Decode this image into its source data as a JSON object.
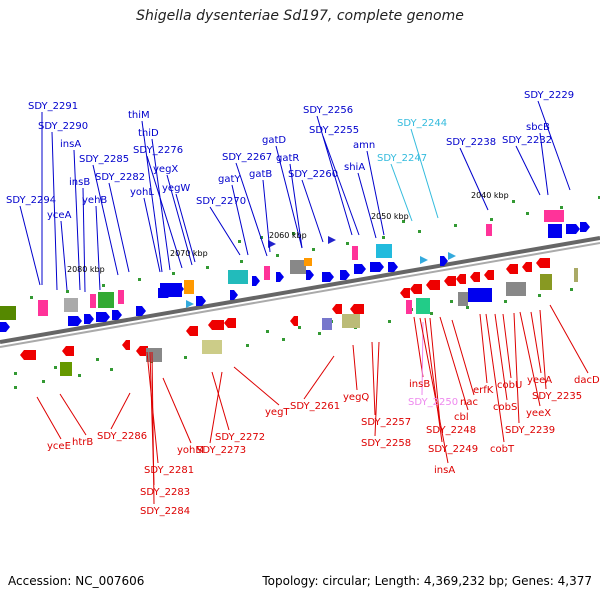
{
  "title": "Shigella dysenteriae Sd197, complete genome",
  "accession": "Accession: NC_007606",
  "summary": "Topology: circular; Length: 4,369,232 bp; Genes: 4,377",
  "colors": {
    "forward_label": "#0000cc",
    "reverse_label": "#dd0000",
    "cyan_label": "#33bbdd",
    "pink_label": "#ee88ee",
    "backbone": "#777777"
  },
  "kbp_ticks": [
    "2080 kbp",
    "2070 kbp",
    "2060 kbp",
    "2050 kbp",
    "2040 kbp"
  ],
  "top_labels": [
    {
      "text": "SDY_2291",
      "color": "blue"
    },
    {
      "text": "SDY_2290",
      "color": "blue"
    },
    {
      "text": "insA",
      "color": "blue"
    },
    {
      "text": "SDY_2294",
      "color": "blue"
    },
    {
      "text": "yceA",
      "color": "blue"
    },
    {
      "text": "insB",
      "color": "blue"
    },
    {
      "text": "yehB",
      "color": "blue"
    },
    {
      "text": "SDY_2285",
      "color": "blue"
    },
    {
      "text": "SDY_2282",
      "color": "blue"
    },
    {
      "text": "thiM",
      "color": "blue"
    },
    {
      "text": "thiD",
      "color": "blue"
    },
    {
      "text": "SDY_2276",
      "color": "blue"
    },
    {
      "text": "yegX",
      "color": "blue"
    },
    {
      "text": "yohL",
      "color": "blue"
    },
    {
      "text": "yegW",
      "color": "blue"
    },
    {
      "text": "SDY_2270",
      "color": "blue"
    },
    {
      "text": "gatY",
      "color": "blue"
    },
    {
      "text": "SDY_2267",
      "color": "blue"
    },
    {
      "text": "gatD",
      "color": "blue"
    },
    {
      "text": "gatB",
      "color": "blue"
    },
    {
      "text": "gatR",
      "color": "blue"
    },
    {
      "text": "SDY_2260",
      "color": "blue"
    },
    {
      "text": "SDY_2256",
      "color": "blue"
    },
    {
      "text": "SDY_2255",
      "color": "blue"
    },
    {
      "text": "amn",
      "color": "blue"
    },
    {
      "text": "shiA",
      "color": "blue"
    },
    {
      "text": "SDY_2244",
      "color": "cyan"
    },
    {
      "text": "SDY_2247",
      "color": "cyan"
    },
    {
      "text": "SDY_2238",
      "color": "blue"
    },
    {
      "text": "SDY_2229",
      "color": "blue"
    },
    {
      "text": "sbcB",
      "color": "blue"
    },
    {
      "text": "SDY_2232",
      "color": "blue"
    }
  ],
  "bottom_labels": [
    {
      "text": "yceE",
      "color": "red"
    },
    {
      "text": "htrB",
      "color": "red"
    },
    {
      "text": "SDY_2286",
      "color": "red"
    },
    {
      "text": "yohM",
      "color": "red"
    },
    {
      "text": "SDY_2281",
      "color": "red"
    },
    {
      "text": "SDY_2283",
      "color": "red"
    },
    {
      "text": "SDY_2284",
      "color": "red"
    },
    {
      "text": "SDY_2272",
      "color": "red"
    },
    {
      "text": "SDY_2273",
      "color": "red"
    },
    {
      "text": "yegT",
      "color": "red"
    },
    {
      "text": "SDY_2261",
      "color": "red"
    },
    {
      "text": "yegQ",
      "color": "red"
    },
    {
      "text": "SDY_2257",
      "color": "red"
    },
    {
      "text": "SDY_2258",
      "color": "red"
    },
    {
      "text": "insB",
      "color": "red"
    },
    {
      "text": "SDY_2250",
      "color": "pink"
    },
    {
      "text": "nac",
      "color": "red"
    },
    {
      "text": "cbl",
      "color": "red"
    },
    {
      "text": "SDY_2248",
      "color": "red"
    },
    {
      "text": "SDY_2249",
      "color": "red"
    },
    {
      "text": "insA",
      "color": "red"
    },
    {
      "text": "erfK",
      "color": "red"
    },
    {
      "text": "cobU",
      "color": "red"
    },
    {
      "text": "cobS",
      "color": "red"
    },
    {
      "text": "cobT",
      "color": "red"
    },
    {
      "text": "SDY_2239",
      "color": "red"
    },
    {
      "text": "yeeA",
      "color": "red"
    },
    {
      "text": "yeeX",
      "color": "red"
    },
    {
      "text": "SDY_2235",
      "color": "red"
    },
    {
      "text": "dacD",
      "color": "red"
    }
  ]
}
